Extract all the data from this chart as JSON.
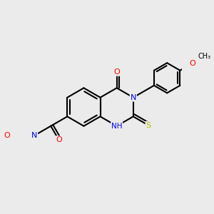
{
  "bg_color": "#ebebeb",
  "bond_color": "#000000",
  "bond_width": 1.5,
  "dbo": 0.055,
  "atom_colors": {
    "N": "#0000ff",
    "O": "#ff0000",
    "S": "#bbbb00",
    "C": "#000000"
  },
  "fs": 7.5
}
